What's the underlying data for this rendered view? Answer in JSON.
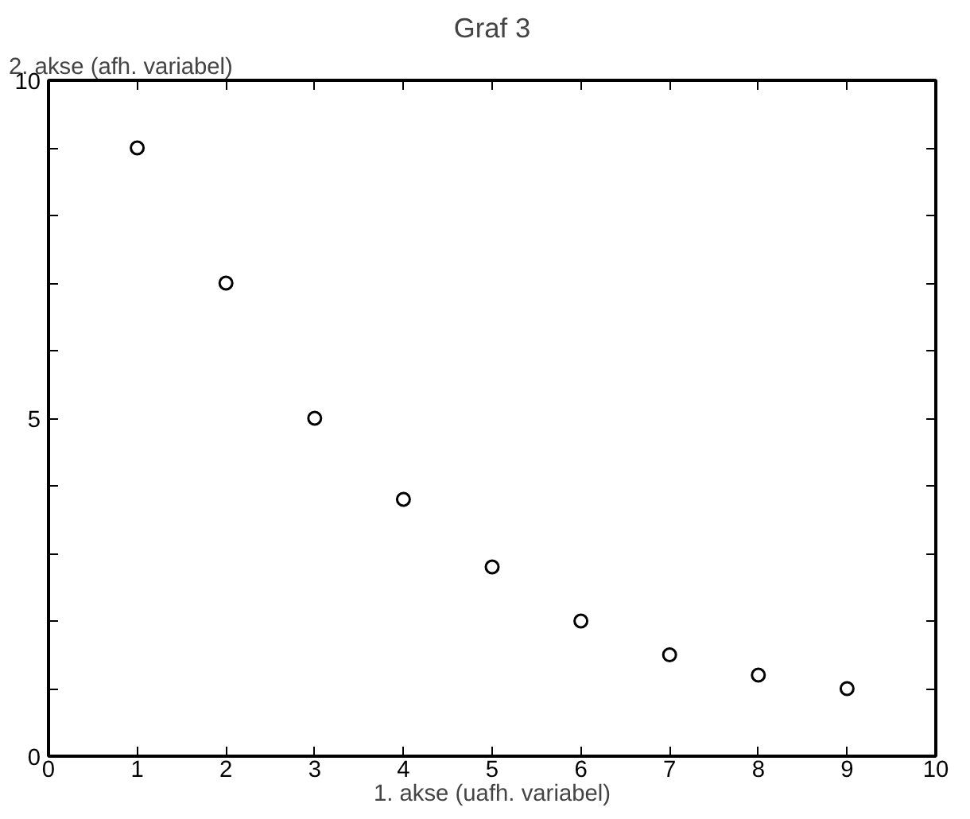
{
  "chart_data": {
    "type": "scatter",
    "title": "Graf 3",
    "xlabel": "1. akse (uafh. variabel)",
    "ylabel": "2. akse (afh. variabel)",
    "x": [
      1,
      2,
      3,
      4,
      5,
      6,
      7,
      8,
      9
    ],
    "values": [
      9,
      7,
      5,
      3.8,
      2.8,
      2,
      1.5,
      1.2,
      1
    ],
    "color": "#000000",
    "marker": "circle",
    "grid": false,
    "xlim": [
      0,
      10
    ],
    "ylim": [
      0,
      10
    ],
    "xticks": [
      0,
      1,
      2,
      3,
      4,
      5,
      6,
      7,
      8,
      9,
      10
    ],
    "yticks": [
      0,
      {
        "value": 1,
        "label": null
      },
      {
        "value": 2,
        "label": null
      },
      {
        "value": 3,
        "label": null
      },
      {
        "value": 4,
        "label": null
      },
      5,
      {
        "value": 6,
        "label": null
      },
      {
        "value": 7,
        "label": null
      },
      {
        "value": 8,
        "label": null
      },
      {
        "value": 9,
        "label": null
      },
      10
    ]
  }
}
